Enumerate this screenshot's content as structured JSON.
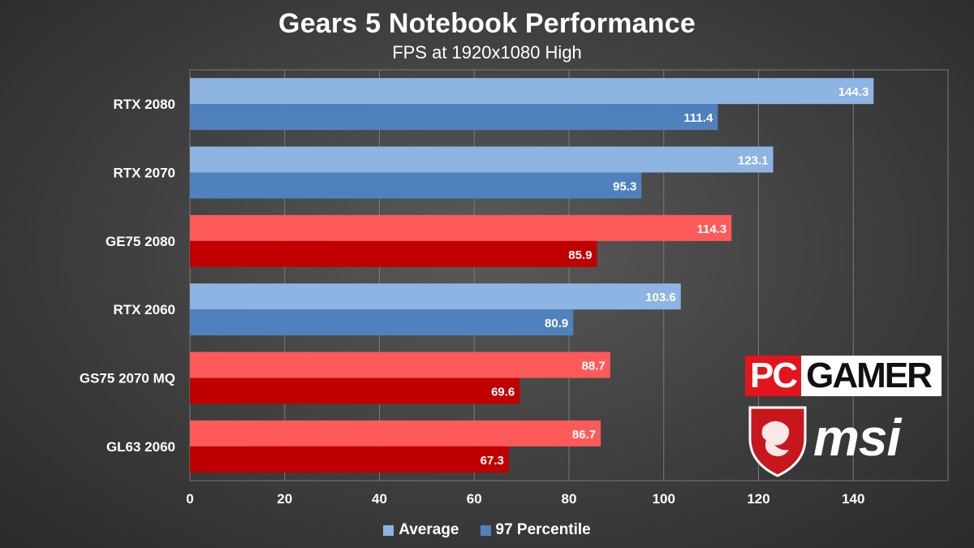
{
  "chart_data": {
    "type": "bar",
    "orientation": "horizontal",
    "title": "Gears 5 Notebook Performance",
    "subtitle": "FPS at 1920x1080 High",
    "categories": [
      "RTX 2080",
      "RTX 2070",
      "GE75 2080",
      "RTX 2060",
      "GS75 2070 MQ",
      "GL63 2060"
    ],
    "highlighted": [
      false,
      false,
      true,
      false,
      true,
      true
    ],
    "series": [
      {
        "name": "Average",
        "values": [
          144.3,
          123.1,
          114.3,
          103.6,
          88.7,
          86.7
        ],
        "color": "#8db4e2",
        "highlight_color": "#ff5a5a"
      },
      {
        "name": "97 Percentile",
        "values": [
          111.4,
          95.3,
          85.9,
          80.9,
          69.6,
          67.3
        ],
        "color": "#4f81bd",
        "highlight_color": "#c00000"
      }
    ],
    "xlim": [
      0,
      160
    ],
    "xticks": [
      0,
      20,
      40,
      60,
      80,
      100,
      120,
      140
    ],
    "grid": true,
    "legend_position": "bottom"
  },
  "branding": {
    "pc": "PC",
    "gamer": "GAMER",
    "msi": "msi"
  }
}
